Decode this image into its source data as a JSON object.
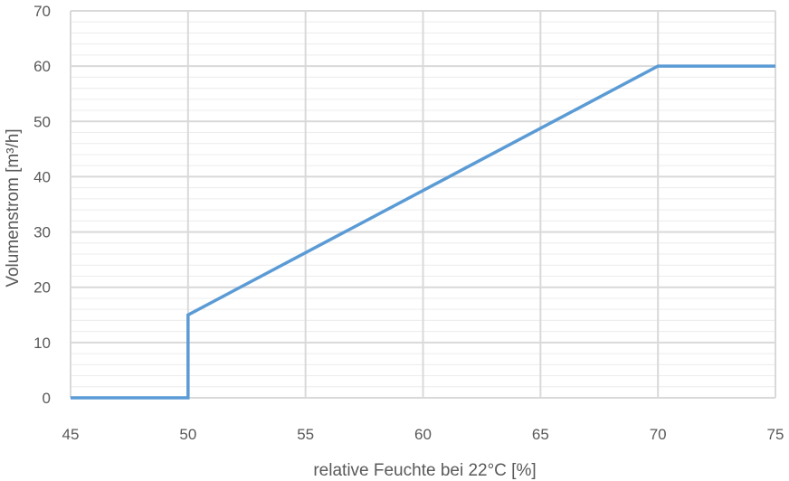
{
  "chart_data": {
    "type": "line",
    "xlabel": "relative Feuchte bei 22°C [%]",
    "ylabel": "Volumenstrom [m³/h]",
    "xlim": [
      45,
      75
    ],
    "ylim": [
      0,
      70
    ],
    "x_ticks": [
      45,
      50,
      55,
      60,
      65,
      70,
      75
    ],
    "y_ticks": [
      0,
      10,
      20,
      30,
      40,
      50,
      60,
      70
    ],
    "y_minor_step": 2,
    "grid": true,
    "legend": "none",
    "series": [
      {
        "color": "#5b9bd5",
        "points": [
          {
            "x": 45,
            "y": 0
          },
          {
            "x": 50,
            "y": 0
          },
          {
            "x": 50,
            "y": 15
          },
          {
            "x": 70,
            "y": 60
          },
          {
            "x": 75,
            "y": 60
          }
        ]
      }
    ]
  }
}
